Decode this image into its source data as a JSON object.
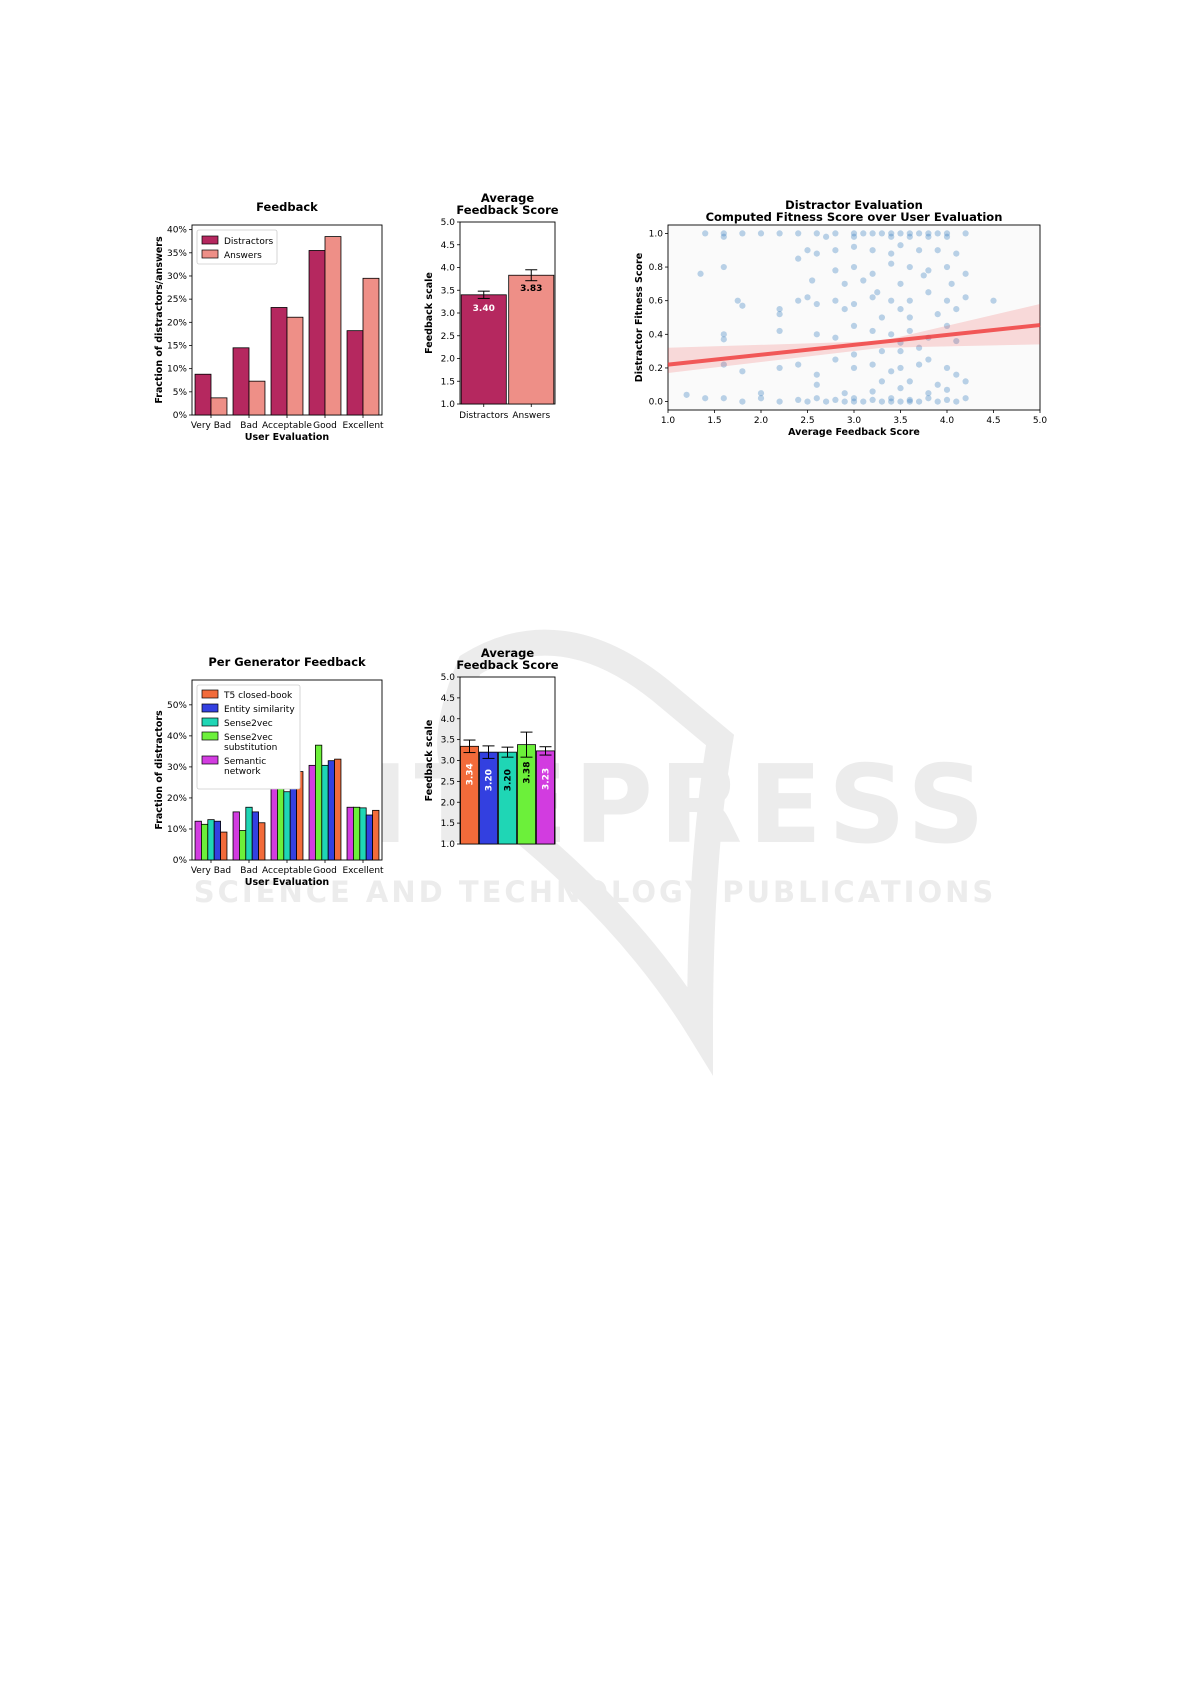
{
  "watermark": {
    "text1": "SCITEPRESS",
    "text2": "SCIENCE AND TECHNOLOGY PUBLICATIONS"
  },
  "colors": {
    "distractors": "#b5285f",
    "answers": "#ee8f87",
    "t5": "#f26b3a",
    "entity": "#3340e0",
    "s2v": "#1fd6b5",
    "s2vsub": "#6cf03a",
    "semantic": "#d23ce0",
    "scatter": "#3d82bf",
    "reg": "#f04040"
  },
  "chart_data": [
    {
      "id": "feedback",
      "type": "bar",
      "title": "Feedback",
      "xlabel": "User Evaluation",
      "ylabel": "Fraction of distractors/answers",
      "categories": [
        "Very Bad",
        "Bad",
        "Acceptable",
        "Good",
        "Excellent"
      ],
      "yticks": [
        "0%",
        "5%",
        "10%",
        "15%",
        "20%",
        "25%",
        "30%",
        "35%",
        "40%"
      ],
      "ylim": [
        0,
        0.41
      ],
      "legend": "top-left",
      "series": [
        {
          "name": "Distractors",
          "color": "#b5285f",
          "values": [
            0.088,
            0.145,
            0.232,
            0.355,
            0.182
          ]
        },
        {
          "name": "Answers",
          "color": "#ee8f87",
          "values": [
            0.037,
            0.073,
            0.211,
            0.385,
            0.295
          ]
        }
      ]
    },
    {
      "id": "avg1",
      "type": "bar",
      "title": "Average\nFeedback Score",
      "ylabel": "Feedback scale",
      "categories": [
        "Distractors",
        "Answers"
      ],
      "values": [
        3.4,
        3.83
      ],
      "labels": [
        "3.40",
        "3.83"
      ],
      "errors": [
        0.08,
        0.12
      ],
      "colors": [
        "#b5285f",
        "#ee8f87"
      ],
      "label_colors": [
        "#ffffff",
        "#000000"
      ],
      "yticks": [
        "1.0",
        "1.5",
        "2.0",
        "2.5",
        "3.0",
        "3.5",
        "4.0",
        "4.5",
        "5.0"
      ],
      "ylim": [
        1,
        5
      ]
    },
    {
      "id": "scatter",
      "type": "scatter",
      "title": "Distractor Evaluation\nComputed Fitness Score over User Evaluation",
      "xlabel": "Average Feedback Score",
      "ylabel": "Distractor Fitness Score",
      "xticks": [
        "1.0",
        "1.5",
        "2.0",
        "2.5",
        "3.0",
        "3.5",
        "4.0",
        "4.5",
        "5.0"
      ],
      "yticks": [
        "0.0",
        "0.2",
        "0.4",
        "0.6",
        "0.8",
        "1.0"
      ],
      "xlim": [
        1,
        5
      ],
      "ylim": [
        -0.05,
        1.05
      ],
      "regression": {
        "x": [
          1,
          5
        ],
        "y": [
          0.22,
          0.455
        ],
        "ci_low_start": 0.17,
        "ci_low_mid": 0.32,
        "ci_low_end": 0.34,
        "ci_high_start": 0.32,
        "ci_high_mid": 0.36,
        "ci_high_end": 0.58
      },
      "points": [
        [
          1.4,
          1.0
        ],
        [
          1.6,
          1.0
        ],
        [
          1.6,
          0.98
        ],
        [
          1.8,
          1.0
        ],
        [
          2.0,
          1.0
        ],
        [
          2.2,
          1.0
        ],
        [
          2.4,
          1.0
        ],
        [
          2.6,
          1.0
        ],
        [
          2.7,
          0.98
        ],
        [
          2.8,
          1.0
        ],
        [
          3.0,
          1.0
        ],
        [
          3.1,
          1.0
        ],
        [
          3.2,
          1.0
        ],
        [
          3.3,
          1.0
        ],
        [
          3.4,
          1.0
        ],
        [
          3.5,
          1.0
        ],
        [
          3.6,
          1.0
        ],
        [
          3.7,
          1.0
        ],
        [
          3.8,
          1.0
        ],
        [
          3.9,
          1.0
        ],
        [
          4.0,
          1.0
        ],
        [
          4.2,
          1.0
        ],
        [
          3.0,
          0.98
        ],
        [
          3.4,
          0.98
        ],
        [
          3.6,
          0.98
        ],
        [
          3.8,
          0.98
        ],
        [
          4.0,
          0.98
        ],
        [
          1.35,
          0.76
        ],
        [
          1.6,
          0.8
        ],
        [
          2.5,
          0.9
        ],
        [
          2.6,
          0.88
        ],
        [
          2.8,
          0.9
        ],
        [
          3.0,
          0.92
        ],
        [
          3.2,
          0.9
        ],
        [
          3.4,
          0.88
        ],
        [
          3.5,
          0.93
        ],
        [
          3.7,
          0.9
        ],
        [
          3.9,
          0.9
        ],
        [
          4.1,
          0.88
        ],
        [
          2.4,
          0.85
        ],
        [
          2.8,
          0.78
        ],
        [
          3.0,
          0.8
        ],
        [
          3.2,
          0.76
        ],
        [
          3.4,
          0.82
        ],
        [
          3.6,
          0.8
        ],
        [
          3.8,
          0.78
        ],
        [
          4.0,
          0.8
        ],
        [
          4.2,
          0.76
        ],
        [
          2.55,
          0.72
        ],
        [
          2.9,
          0.7
        ],
        [
          3.1,
          0.72
        ],
        [
          3.5,
          0.7
        ],
        [
          3.75,
          0.75
        ],
        [
          4.05,
          0.7
        ],
        [
          1.75,
          0.6
        ],
        [
          1.8,
          0.57
        ],
        [
          2.2,
          0.55
        ],
        [
          2.2,
          0.52
        ],
        [
          2.4,
          0.6
        ],
        [
          2.5,
          0.62
        ],
        [
          2.6,
          0.58
        ],
        [
          2.8,
          0.6
        ],
        [
          2.9,
          0.55
        ],
        [
          3.0,
          0.58
        ],
        [
          3.2,
          0.62
        ],
        [
          3.25,
          0.65
        ],
        [
          3.4,
          0.6
        ],
        [
          3.5,
          0.55
        ],
        [
          3.6,
          0.6
        ],
        [
          3.8,
          0.65
        ],
        [
          4.0,
          0.6
        ],
        [
          4.1,
          0.55
        ],
        [
          4.2,
          0.62
        ],
        [
          4.5,
          0.6
        ],
        [
          3.3,
          0.5
        ],
        [
          3.6,
          0.5
        ],
        [
          3.9,
          0.52
        ],
        [
          1.6,
          0.4
        ],
        [
          1.6,
          0.37
        ],
        [
          2.2,
          0.42
        ],
        [
          2.6,
          0.4
        ],
        [
          2.8,
          0.38
        ],
        [
          3.0,
          0.45
        ],
        [
          3.2,
          0.42
        ],
        [
          3.4,
          0.4
        ],
        [
          3.5,
          0.35
        ],
        [
          3.6,
          0.42
        ],
        [
          3.8,
          0.38
        ],
        [
          4.0,
          0.45
        ],
        [
          4.1,
          0.36
        ],
        [
          3.3,
          0.3
        ],
        [
          3.0,
          0.28
        ],
        [
          3.5,
          0.3
        ],
        [
          3.7,
          0.32
        ],
        [
          1.6,
          0.22
        ],
        [
          1.8,
          0.18
        ],
        [
          2.2,
          0.2
        ],
        [
          2.4,
          0.22
        ],
        [
          2.6,
          0.16
        ],
        [
          2.8,
          0.25
        ],
        [
          3.0,
          0.2
        ],
        [
          3.2,
          0.22
        ],
        [
          3.4,
          0.18
        ],
        [
          3.5,
          0.2
        ],
        [
          3.7,
          0.22
        ],
        [
          3.8,
          0.25
        ],
        [
          4.0,
          0.2
        ],
        [
          4.1,
          0.16
        ],
        [
          3.3,
          0.12
        ],
        [
          2.6,
          0.1
        ],
        [
          3.6,
          0.12
        ],
        [
          3.9,
          0.1
        ],
        [
          4.2,
          0.12
        ],
        [
          2.9,
          0.05
        ],
        [
          3.2,
          0.06
        ],
        [
          3.5,
          0.08
        ],
        [
          3.8,
          0.05
        ],
        [
          4.0,
          0.07
        ],
        [
          1.2,
          0.04
        ],
        [
          1.6,
          0.02
        ],
        [
          1.8,
          0.0
        ],
        [
          2.0,
          0.02
        ],
        [
          2.2,
          0.0
        ],
        [
          2.4,
          0.01
        ],
        [
          2.5,
          0.0
        ],
        [
          2.6,
          0.02
        ],
        [
          2.7,
          0.0
        ],
        [
          2.8,
          0.01
        ],
        [
          2.9,
          0.0
        ],
        [
          3.0,
          0.02
        ],
        [
          3.1,
          0.0
        ],
        [
          3.2,
          0.01
        ],
        [
          3.3,
          0.0
        ],
        [
          3.4,
          0.02
        ],
        [
          3.5,
          0.0
        ],
        [
          3.6,
          0.01
        ],
        [
          3.7,
          0.0
        ],
        [
          3.8,
          0.02
        ],
        [
          3.9,
          0.0
        ],
        [
          4.0,
          0.01
        ],
        [
          4.1,
          0.0
        ],
        [
          4.2,
          0.02
        ],
        [
          3.0,
          0.0
        ],
        [
          3.4,
          0.0
        ],
        [
          3.6,
          0.0
        ],
        [
          1.4,
          0.02
        ],
        [
          2.0,
          0.05
        ]
      ]
    },
    {
      "id": "pergen",
      "type": "bar",
      "title": "Per Generator Feedback",
      "xlabel": "User Evaluation",
      "ylabel": "Fraction of distractors",
      "categories": [
        "Very Bad",
        "Bad",
        "Acceptable",
        "Good",
        "Excellent"
      ],
      "yticks": [
        "0%",
        "10%",
        "20%",
        "30%",
        "40%",
        "50%"
      ],
      "ylim": [
        0,
        0.58
      ],
      "legend": "top-left",
      "series": [
        {
          "name": "Semantic network",
          "color": "#d23ce0",
          "values": [
            0.125,
            0.155,
            0.235,
            0.305,
            0.17
          ]
        },
        {
          "name": "Sense2vec substitution",
          "color": "#6cf03a",
          "values": [
            0.115,
            0.095,
            0.24,
            0.37,
            0.17
          ]
        },
        {
          "name": "Sense2vec",
          "color": "#1fd6b5",
          "values": [
            0.13,
            0.17,
            0.22,
            0.305,
            0.168
          ]
        },
        {
          "name": "Entity similarity",
          "color": "#3340e0",
          "values": [
            0.125,
            0.155,
            0.24,
            0.32,
            0.145
          ]
        },
        {
          "name": "T5 closed-book",
          "color": "#f26b3a",
          "values": [
            0.09,
            0.12,
            0.285,
            0.325,
            0.16
          ]
        }
      ],
      "legend_order": [
        "T5 closed-book",
        "Entity similarity",
        "Sense2vec",
        "Sense2vec\nsubstitution",
        "Semantic\nnetwork"
      ]
    },
    {
      "id": "avg2",
      "type": "bar",
      "title": "Average\nFeedback Score",
      "ylabel": "Feedback scale",
      "categories": [
        "T5 closed-book",
        "Entity similarity",
        "Sense2vec",
        "Sense2vec substitution",
        "Semantic network"
      ],
      "values": [
        3.34,
        3.2,
        3.2,
        3.38,
        3.23
      ],
      "labels": [
        "3.34",
        "3.20",
        "3.20",
        "3.38",
        "3.23"
      ],
      "errors": [
        0.15,
        0.15,
        0.12,
        0.3,
        0.1
      ],
      "colors": [
        "#f26b3a",
        "#3340e0",
        "#1fd6b5",
        "#6cf03a",
        "#d23ce0"
      ],
      "label_colors": [
        "#ffffff",
        "#ffffff",
        "#000000",
        "#000000",
        "#ffffff"
      ],
      "yticks": [
        "1.0",
        "1.5",
        "2.0",
        "2.5",
        "3.0",
        "3.5",
        "4.0",
        "4.5",
        "5.0"
      ],
      "ylim": [
        1,
        5
      ]
    }
  ]
}
